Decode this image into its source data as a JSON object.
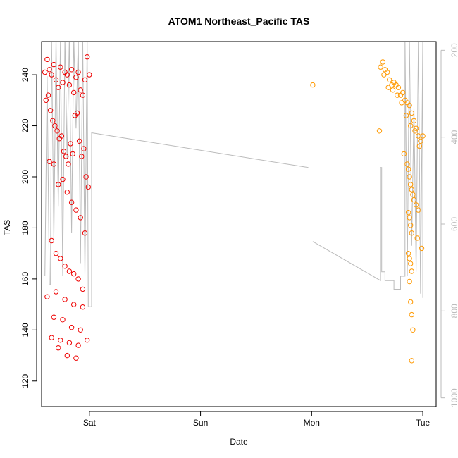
{
  "chart_data": {
    "type": "scatter",
    "title": "ATOM1 Northeast_Pacific TAS",
    "xlabel": "Date",
    "ylabel": "TAS",
    "x_tick_labels": [
      "Sat",
      "Sun",
      "Mon",
      "Tue"
    ],
    "x_tick_days": [
      1,
      2,
      3,
      4
    ],
    "xlim": [
      0.57,
      4.12
    ],
    "ylim": [
      110,
      253
    ],
    "y_ticks": [
      120,
      140,
      160,
      180,
      200,
      220,
      240
    ],
    "right_axis": {
      "ylim": [
        1020,
        180
      ],
      "ticks": [
        200,
        400,
        600,
        800,
        1000
      ],
      "color": "#bbbbbb"
    },
    "grid": false,
    "line_color": "#bbbbbb",
    "series": [
      {
        "color": "#ee0000",
        "marker": "open-circle",
        "x": [
          0.6,
          0.62,
          0.64,
          0.66,
          0.68,
          0.7,
          0.72,
          0.74,
          0.76,
          0.78,
          0.8,
          0.82,
          0.84,
          0.86,
          0.88,
          0.9,
          0.92,
          0.94,
          0.96,
          0.98,
          1.0,
          0.61,
          0.63,
          0.65,
          0.67,
          0.69,
          0.71,
          0.73,
          0.75,
          0.77,
          0.79,
          0.81,
          0.83,
          0.85,
          0.87,
          0.89,
          0.91,
          0.93,
          0.95,
          0.97,
          0.99,
          0.64,
          0.68,
          0.72,
          0.76,
          0.8,
          0.84,
          0.88,
          0.92,
          0.96,
          0.66,
          0.7,
          0.74,
          0.78,
          0.82,
          0.86,
          0.9,
          0.94,
          0.62,
          0.7,
          0.78,
          0.86,
          0.94,
          0.68,
          0.76,
          0.84,
          0.92,
          0.66,
          0.74,
          0.82,
          0.9,
          0.98,
          0.72,
          0.8,
          0.88
        ],
        "y": [
          241,
          246,
          242,
          240,
          244,
          238,
          235,
          243,
          237,
          241,
          240,
          236,
          242,
          233,
          239,
          241,
          234,
          232,
          238,
          247,
          240,
          230,
          232,
          226,
          222,
          220,
          218,
          215,
          216,
          210,
          208,
          205,
          213,
          209,
          224,
          225,
          214,
          208,
          211,
          200,
          196,
          206,
          205,
          197,
          199,
          194,
          190,
          187,
          184,
          178,
          175,
          170,
          168,
          165,
          163,
          162,
          160,
          156,
          153,
          155,
          152,
          150,
          149,
          145,
          144,
          141,
          140,
          137,
          136,
          135,
          134,
          136,
          133,
          130,
          129
        ]
      },
      {
        "color": "#ff9900",
        "marker": "open-circle",
        "x": [
          3.01,
          3.62,
          3.64,
          3.66,
          3.68,
          3.7,
          3.72,
          3.74,
          3.76,
          3.78,
          3.8,
          3.82,
          3.84,
          3.86,
          3.88,
          3.9,
          3.92,
          3.94,
          3.96,
          3.98,
          4.0,
          3.65,
          3.69,
          3.73,
          3.77,
          3.81,
          3.85,
          3.89,
          3.93,
          3.97,
          3.83,
          3.86,
          3.87,
          3.88,
          3.89,
          3.9,
          3.91,
          3.92,
          3.94,
          3.96,
          3.87,
          3.88,
          3.89,
          3.9,
          3.95,
          3.99,
          3.87,
          3.88,
          3.89,
          3.9,
          3.88,
          3.89,
          3.9,
          3.91,
          3.9,
          3.61
        ],
        "y": [
          236,
          243,
          245,
          242,
          241,
          238,
          236,
          237,
          236,
          235,
          232,
          233,
          230,
          229,
          228,
          225,
          222,
          219,
          216,
          214,
          216,
          240,
          235,
          234,
          232,
          229,
          224,
          220,
          218,
          212,
          209,
          205,
          203,
          200,
          197,
          195,
          193,
          191,
          189,
          187,
          186,
          184,
          181,
          178,
          176,
          172,
          170,
          168,
          166,
          163,
          159,
          151,
          146,
          140,
          128,
          218
        ]
      }
    ]
  }
}
